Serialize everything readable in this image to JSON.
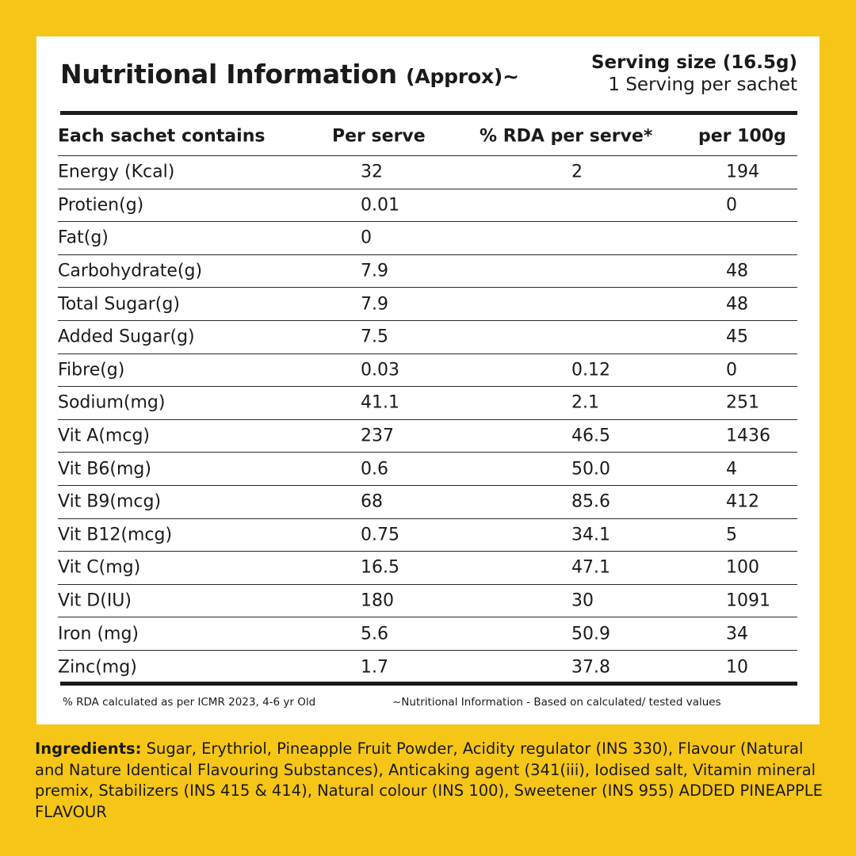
{
  "title": "Nutritional Information",
  "title_suffix": "(Approx)~",
  "serving_size": "Serving size (16.5g)",
  "servings_per": "1 Serving per sachet",
  "table": {
    "headers": [
      "Each sachet contains",
      "Per serve",
      "% RDA per serve*",
      "per 100g"
    ],
    "rows": [
      {
        "name": "Energy (Kcal)",
        "per_serve": "32",
        "rda": "2",
        "per_100g": "194"
      },
      {
        "name": "Protien(g)",
        "per_serve": "0.01",
        "rda": "",
        "per_100g": "0"
      },
      {
        "name": "Fat(g)",
        "per_serve": "0",
        "rda": "",
        "per_100g": ""
      },
      {
        "name": "Carbohydrate(g)",
        "per_serve": "7.9",
        "rda": "",
        "per_100g": "48"
      },
      {
        "name": "Total Sugar(g)",
        "per_serve": "7.9",
        "rda": "",
        "per_100g": "48"
      },
      {
        "name": "Added Sugar(g)",
        "per_serve": "7.5",
        "rda": "",
        "per_100g": "45"
      },
      {
        "name": "Fibre(g)",
        "per_serve": "0.03",
        "rda": "0.12",
        "per_100g": "0"
      },
      {
        "name": "Sodium(mg)",
        "per_serve": "41.1",
        "rda": "2.1",
        "per_100g": "251"
      },
      {
        "name": "Vit A(mcg)",
        "per_serve": "237",
        "rda": "46.5",
        "per_100g": "1436"
      },
      {
        "name": "Vit B6(mg)",
        "per_serve": "0.6",
        "rda": "50.0",
        "per_100g": "4"
      },
      {
        "name": "Vit B9(mcg)",
        "per_serve": "68",
        "rda": "85.6",
        "per_100g": "412"
      },
      {
        "name": "Vit B12(mcg)",
        "per_serve": "0.75",
        "rda": "34.1",
        "per_100g": "5"
      },
      {
        "name": "Vit C(mg)",
        "per_serve": "16.5",
        "rda": "47.1",
        "per_100g": "100"
      },
      {
        "name": "Vit D(IU)",
        "per_serve": "180",
        "rda": "30",
        "per_100g": "1091"
      },
      {
        "name": "Iron (mg)",
        "per_serve": "5.6",
        "rda": "50.9",
        "per_100g": "34"
      },
      {
        "name": "Zinc(mg)",
        "per_serve": "1.7",
        "rda": "37.8",
        "per_100g": "10"
      }
    ]
  },
  "footnote_left": "% RDA calculated as per ICMR 2023, 4-6 yr Old",
  "footnote_right": "~Nutritional Information - Based on calculated/ tested values",
  "ingredients_label": "Ingredients:",
  "ingredients_text": " Sugar, Erythriol, Pineapple Fruit Powder, Acidity regulator (INS 330), Flavour (Natural and Nature Identical Flavouring Substances), Anticaking agent (341(iii), Iodised salt, Vitamin mineral premix, Stabilizers (INS 415 & 414), Natural colour (INS 100), Sweetener (INS 955) ADDED PINEAPPLE FLAVOUR",
  "colors": {
    "background": "#f5c518",
    "card": "#ffffff",
    "text": "#1a1a1a"
  }
}
